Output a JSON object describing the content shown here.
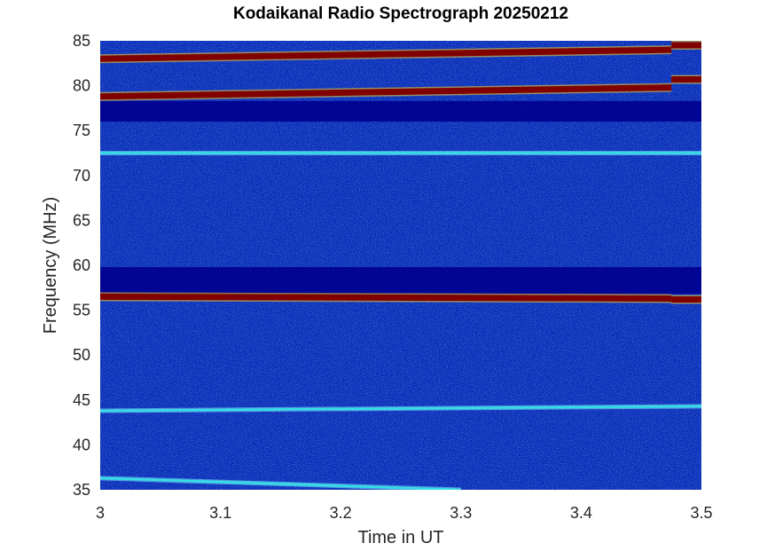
{
  "chart_data": {
    "type": "heatmap",
    "title": "Kodaikanal Radio Spectrograph  20250212",
    "xlabel": "Time in UT",
    "ylabel": "Frequency (MHz)",
    "xlim": [
      3,
      3.5
    ],
    "ylim": [
      35,
      85
    ],
    "x_ticks": [
      "3",
      "3.1",
      "3.2",
      "3.3",
      "3.4",
      "3.5"
    ],
    "y_ticks": [
      "35",
      "40",
      "45",
      "50",
      "55",
      "60",
      "65",
      "70",
      "75",
      "80",
      "85"
    ],
    "colormap": "jet",
    "background_level": "low",
    "emission_bands": [
      {
        "start": [
          3.0,
          83.0
        ],
        "end": [
          3.475,
          84.0
        ],
        "level": "high"
      },
      {
        "start": [
          3.475,
          84.5
        ],
        "end": [
          3.5,
          84.5
        ],
        "level": "high"
      },
      {
        "start": [
          3.0,
          78.8
        ],
        "end": [
          3.475,
          79.8
        ],
        "level": "high"
      },
      {
        "start": [
          3.475,
          80.7
        ],
        "end": [
          3.5,
          80.7
        ],
        "level": "high"
      },
      {
        "start": [
          3.0,
          72.5
        ],
        "end": [
          3.5,
          72.5
        ],
        "level": "medium"
      },
      {
        "start": [
          3.0,
          56.5
        ],
        "end": [
          3.475,
          56.3
        ],
        "level": "high"
      },
      {
        "start": [
          3.475,
          56.2
        ],
        "end": [
          3.5,
          56.2
        ],
        "level": "high"
      },
      {
        "start": [
          3.0,
          43.8
        ],
        "end": [
          3.5,
          44.3
        ],
        "level": "medium"
      },
      {
        "start": [
          3.0,
          36.3
        ],
        "end": [
          3.3,
          35.0
        ],
        "level": "medium"
      }
    ],
    "suppressed_bands": [
      {
        "from": 56.8,
        "to": 59.8
      },
      {
        "from": 76.0,
        "to": 78.3
      }
    ],
    "colors": {
      "background": "#0a2fb8",
      "suppressed": "#00008f",
      "high": "#800000",
      "medium": "#33dfe6"
    }
  }
}
